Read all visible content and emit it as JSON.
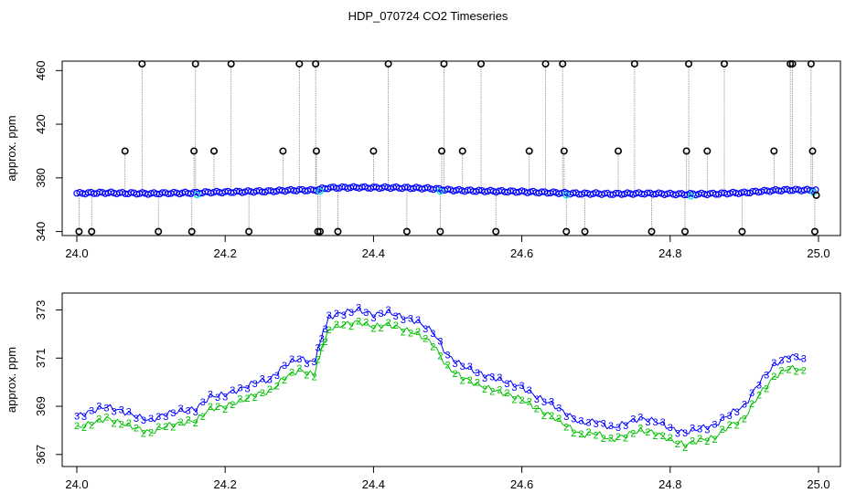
{
  "title": "HDP_070724  CO2 Timeseries",
  "colors": {
    "blue": "#0000ff",
    "green": "#00c000",
    "cyan": "#00e0e0",
    "gray": "#8c8c8c",
    "black": "#000000"
  },
  "chart_data": [
    {
      "type": "scatter",
      "title": "",
      "xlabel": "",
      "ylabel": "approx. ppm",
      "xlim": [
        24.0,
        25.0
      ],
      "ylim": [
        337,
        467
      ],
      "xticks": [
        24.0,
        24.2,
        24.4,
        24.6,
        24.8,
        25.0
      ],
      "yticks": [
        340,
        380,
        420,
        460
      ],
      "grid": false,
      "legend": "none",
      "baseline": {
        "name": "",
        "x": [
          24.0,
          24.02,
          24.04,
          24.06,
          24.08,
          24.1,
          24.12,
          24.14,
          24.16,
          24.18,
          24.2,
          24.22,
          24.24,
          24.26,
          24.28,
          24.3,
          24.32,
          24.33,
          24.34,
          24.36,
          24.38,
          24.4,
          24.42,
          24.44,
          24.46,
          24.48,
          24.5,
          24.52,
          24.54,
          24.56,
          24.58,
          24.6,
          24.62,
          24.64,
          24.66,
          24.68,
          24.7,
          24.72,
          24.74,
          24.76,
          24.78,
          24.8,
          24.82,
          24.84,
          24.86,
          24.88,
          24.9,
          24.92,
          24.94,
          24.96,
          24.98,
          24.995
        ],
        "y": [
          368.5,
          368.7,
          368.9,
          368.6,
          368.5,
          368.3,
          368.6,
          368.7,
          368.8,
          369.3,
          369.4,
          369.6,
          369.9,
          370.0,
          370.6,
          370.9,
          370.7,
          371.8,
          372.6,
          372.8,
          372.9,
          372.7,
          372.8,
          372.6,
          372.4,
          372.0,
          371.0,
          370.6,
          370.3,
          370.1,
          369.9,
          369.7,
          369.3,
          369.0,
          368.6,
          368.2,
          368.3,
          368.0,
          368.2,
          368.4,
          368.3,
          368.0,
          367.8,
          368.0,
          368.1,
          368.6,
          368.9,
          369.9,
          370.6,
          371.0,
          370.9,
          370.8
        ]
      },
      "spikes": {
        "name": "",
        "points": [
          {
            "x": 24.003,
            "y": 340
          },
          {
            "x": 24.02,
            "y": 340
          },
          {
            "x": 24.065,
            "y": 400
          },
          {
            "x": 24.088,
            "y": 465
          },
          {
            "x": 24.11,
            "y": 340
          },
          {
            "x": 24.155,
            "y": 340
          },
          {
            "x": 24.158,
            "y": 400
          },
          {
            "x": 24.16,
            "y": 465
          },
          {
            "x": 24.185,
            "y": 400
          },
          {
            "x": 24.208,
            "y": 465
          },
          {
            "x": 24.232,
            "y": 340
          },
          {
            "x": 24.278,
            "y": 400
          },
          {
            "x": 24.3,
            "y": 465
          },
          {
            "x": 24.322,
            "y": 465
          },
          {
            "x": 24.323,
            "y": 400
          },
          {
            "x": 24.325,
            "y": 340
          },
          {
            "x": 24.328,
            "y": 340
          },
          {
            "x": 24.352,
            "y": 340
          },
          {
            "x": 24.4,
            "y": 400
          },
          {
            "x": 24.42,
            "y": 465
          },
          {
            "x": 24.445,
            "y": 340
          },
          {
            "x": 24.49,
            "y": 340
          },
          {
            "x": 24.492,
            "y": 400
          },
          {
            "x": 24.495,
            "y": 465
          },
          {
            "x": 24.52,
            "y": 400
          },
          {
            "x": 24.545,
            "y": 465
          },
          {
            "x": 24.565,
            "y": 340
          },
          {
            "x": 24.61,
            "y": 400
          },
          {
            "x": 24.632,
            "y": 465
          },
          {
            "x": 24.655,
            "y": 465
          },
          {
            "x": 24.657,
            "y": 400
          },
          {
            "x": 24.66,
            "y": 340
          },
          {
            "x": 24.685,
            "y": 340
          },
          {
            "x": 24.73,
            "y": 400
          },
          {
            "x": 24.752,
            "y": 465
          },
          {
            "x": 24.775,
            "y": 340
          },
          {
            "x": 24.82,
            "y": 340
          },
          {
            "x": 24.822,
            "y": 400
          },
          {
            "x": 24.825,
            "y": 465
          },
          {
            "x": 24.85,
            "y": 400
          },
          {
            "x": 24.873,
            "y": 465
          },
          {
            "x": 24.897,
            "y": 340
          },
          {
            "x": 24.94,
            "y": 400
          },
          {
            "x": 24.962,
            "y": 465
          },
          {
            "x": 24.965,
            "y": 465
          },
          {
            "x": 24.99,
            "y": 465
          },
          {
            "x": 24.992,
            "y": 400
          },
          {
            "x": 24.995,
            "y": 340
          },
          {
            "x": 24.997,
            "y": 367
          }
        ]
      }
    },
    {
      "type": "line",
      "title": "",
      "xlabel": "",
      "ylabel": "approx. ppm",
      "xlim": [
        24.0,
        25.0
      ],
      "ylim": [
        366.5,
        373.7
      ],
      "xticks": [
        24.0,
        24.2,
        24.4,
        24.6,
        24.8,
        25.0
      ],
      "yticks": [
        367,
        369,
        371,
        373
      ],
      "grid": false,
      "legend": "none",
      "x": [
        24.0,
        24.02,
        24.04,
        24.06,
        24.08,
        24.1,
        24.12,
        24.14,
        24.16,
        24.18,
        24.2,
        24.22,
        24.24,
        24.26,
        24.28,
        24.3,
        24.32,
        24.33,
        24.34,
        24.36,
        24.38,
        24.4,
        24.42,
        24.44,
        24.46,
        24.48,
        24.5,
        24.52,
        24.54,
        24.56,
        24.58,
        24.6,
        24.62,
        24.64,
        24.66,
        24.68,
        24.7,
        24.72,
        24.74,
        24.76,
        24.78,
        24.8,
        24.82,
        24.84,
        24.86,
        24.88,
        24.9,
        24.92,
        24.94,
        24.96,
        24.98
      ],
      "series": [
        {
          "marker": "3",
          "values": [
            368.6,
            368.8,
            369.0,
            368.8,
            368.6,
            368.4,
            368.7,
            368.8,
            368.9,
            369.4,
            369.5,
            369.7,
            370.0,
            370.1,
            370.7,
            371.0,
            370.8,
            371.9,
            372.7,
            372.9,
            373.0,
            372.8,
            372.9,
            372.7,
            372.5,
            372.1,
            371.1,
            370.7,
            370.4,
            370.2,
            370.0,
            369.8,
            369.4,
            369.1,
            368.7,
            368.3,
            368.4,
            368.1,
            368.3,
            368.5,
            368.4,
            368.1,
            367.9,
            368.1,
            368.2,
            368.7,
            369.0,
            370.0,
            370.7,
            371.1,
            371.0
          ]
        },
        {
          "marker": "2",
          "values": [
            368.1,
            368.3,
            368.5,
            368.3,
            368.1,
            367.9,
            368.2,
            368.3,
            368.4,
            368.9,
            369.0,
            369.2,
            369.5,
            369.6,
            370.2,
            370.5,
            370.3,
            371.4,
            372.2,
            372.4,
            372.5,
            372.3,
            372.4,
            372.2,
            372.0,
            371.6,
            370.6,
            370.2,
            369.9,
            369.7,
            369.5,
            369.3,
            368.9,
            368.6,
            368.2,
            367.8,
            367.9,
            367.6,
            367.8,
            368.0,
            367.9,
            367.6,
            367.4,
            367.6,
            367.7,
            368.2,
            368.5,
            369.5,
            370.2,
            370.6,
            370.5
          ]
        }
      ]
    }
  ]
}
